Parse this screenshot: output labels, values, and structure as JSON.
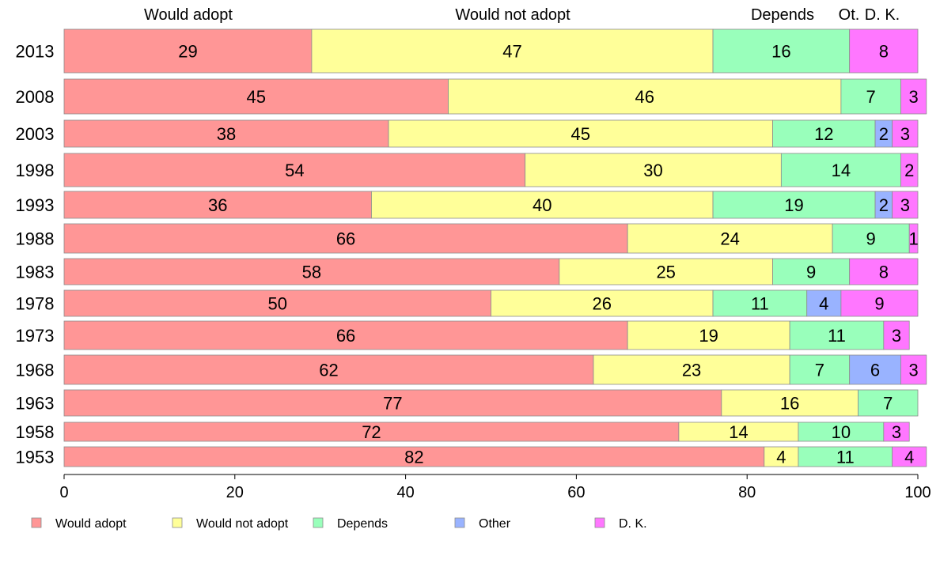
{
  "chart_data": {
    "type": "bar",
    "orientation": "horizontal",
    "stacked": true,
    "title": "",
    "xlabel": "",
    "ylabel": "",
    "xlim": [
      0,
      100
    ],
    "x_ticks": [
      "0",
      "20",
      "40",
      "60",
      "80",
      "100"
    ],
    "grid": false,
    "legend_position": "bottom",
    "top_labels": [
      "Would adopt",
      "Would not adopt",
      "Depends",
      "Ot.",
      "D. K."
    ],
    "categories": [
      "2013",
      "2008",
      "2003",
      "1998",
      "1993",
      "1988",
      "1983",
      "1978",
      "1973",
      "1968",
      "1963",
      "1958",
      "1953"
    ],
    "series": [
      {
        "name": "Would adopt",
        "color": "#ff9696",
        "values": [
          29,
          45,
          38,
          54,
          36,
          66,
          58,
          50,
          66,
          62,
          77,
          72,
          82
        ]
      },
      {
        "name": "Would not adopt",
        "color": "#ffff99",
        "values": [
          47,
          46,
          45,
          30,
          40,
          24,
          25,
          26,
          19,
          23,
          16,
          14,
          4
        ]
      },
      {
        "name": "Depends",
        "color": "#99ffbb",
        "values": [
          16,
          7,
          12,
          14,
          19,
          9,
          9,
          11,
          11,
          7,
          7,
          10,
          11
        ]
      },
      {
        "name": "Other",
        "color": "#99b3ff",
        "values": [
          0,
          0,
          2,
          0,
          2,
          0,
          0,
          4,
          0,
          6,
          0,
          0,
          0
        ]
      },
      {
        "name": "D. K.",
        "color": "#ff77ff",
        "values": [
          8,
          3,
          3,
          2,
          3,
          1,
          8,
          9,
          3,
          3,
          0,
          3,
          4
        ]
      }
    ]
  }
}
